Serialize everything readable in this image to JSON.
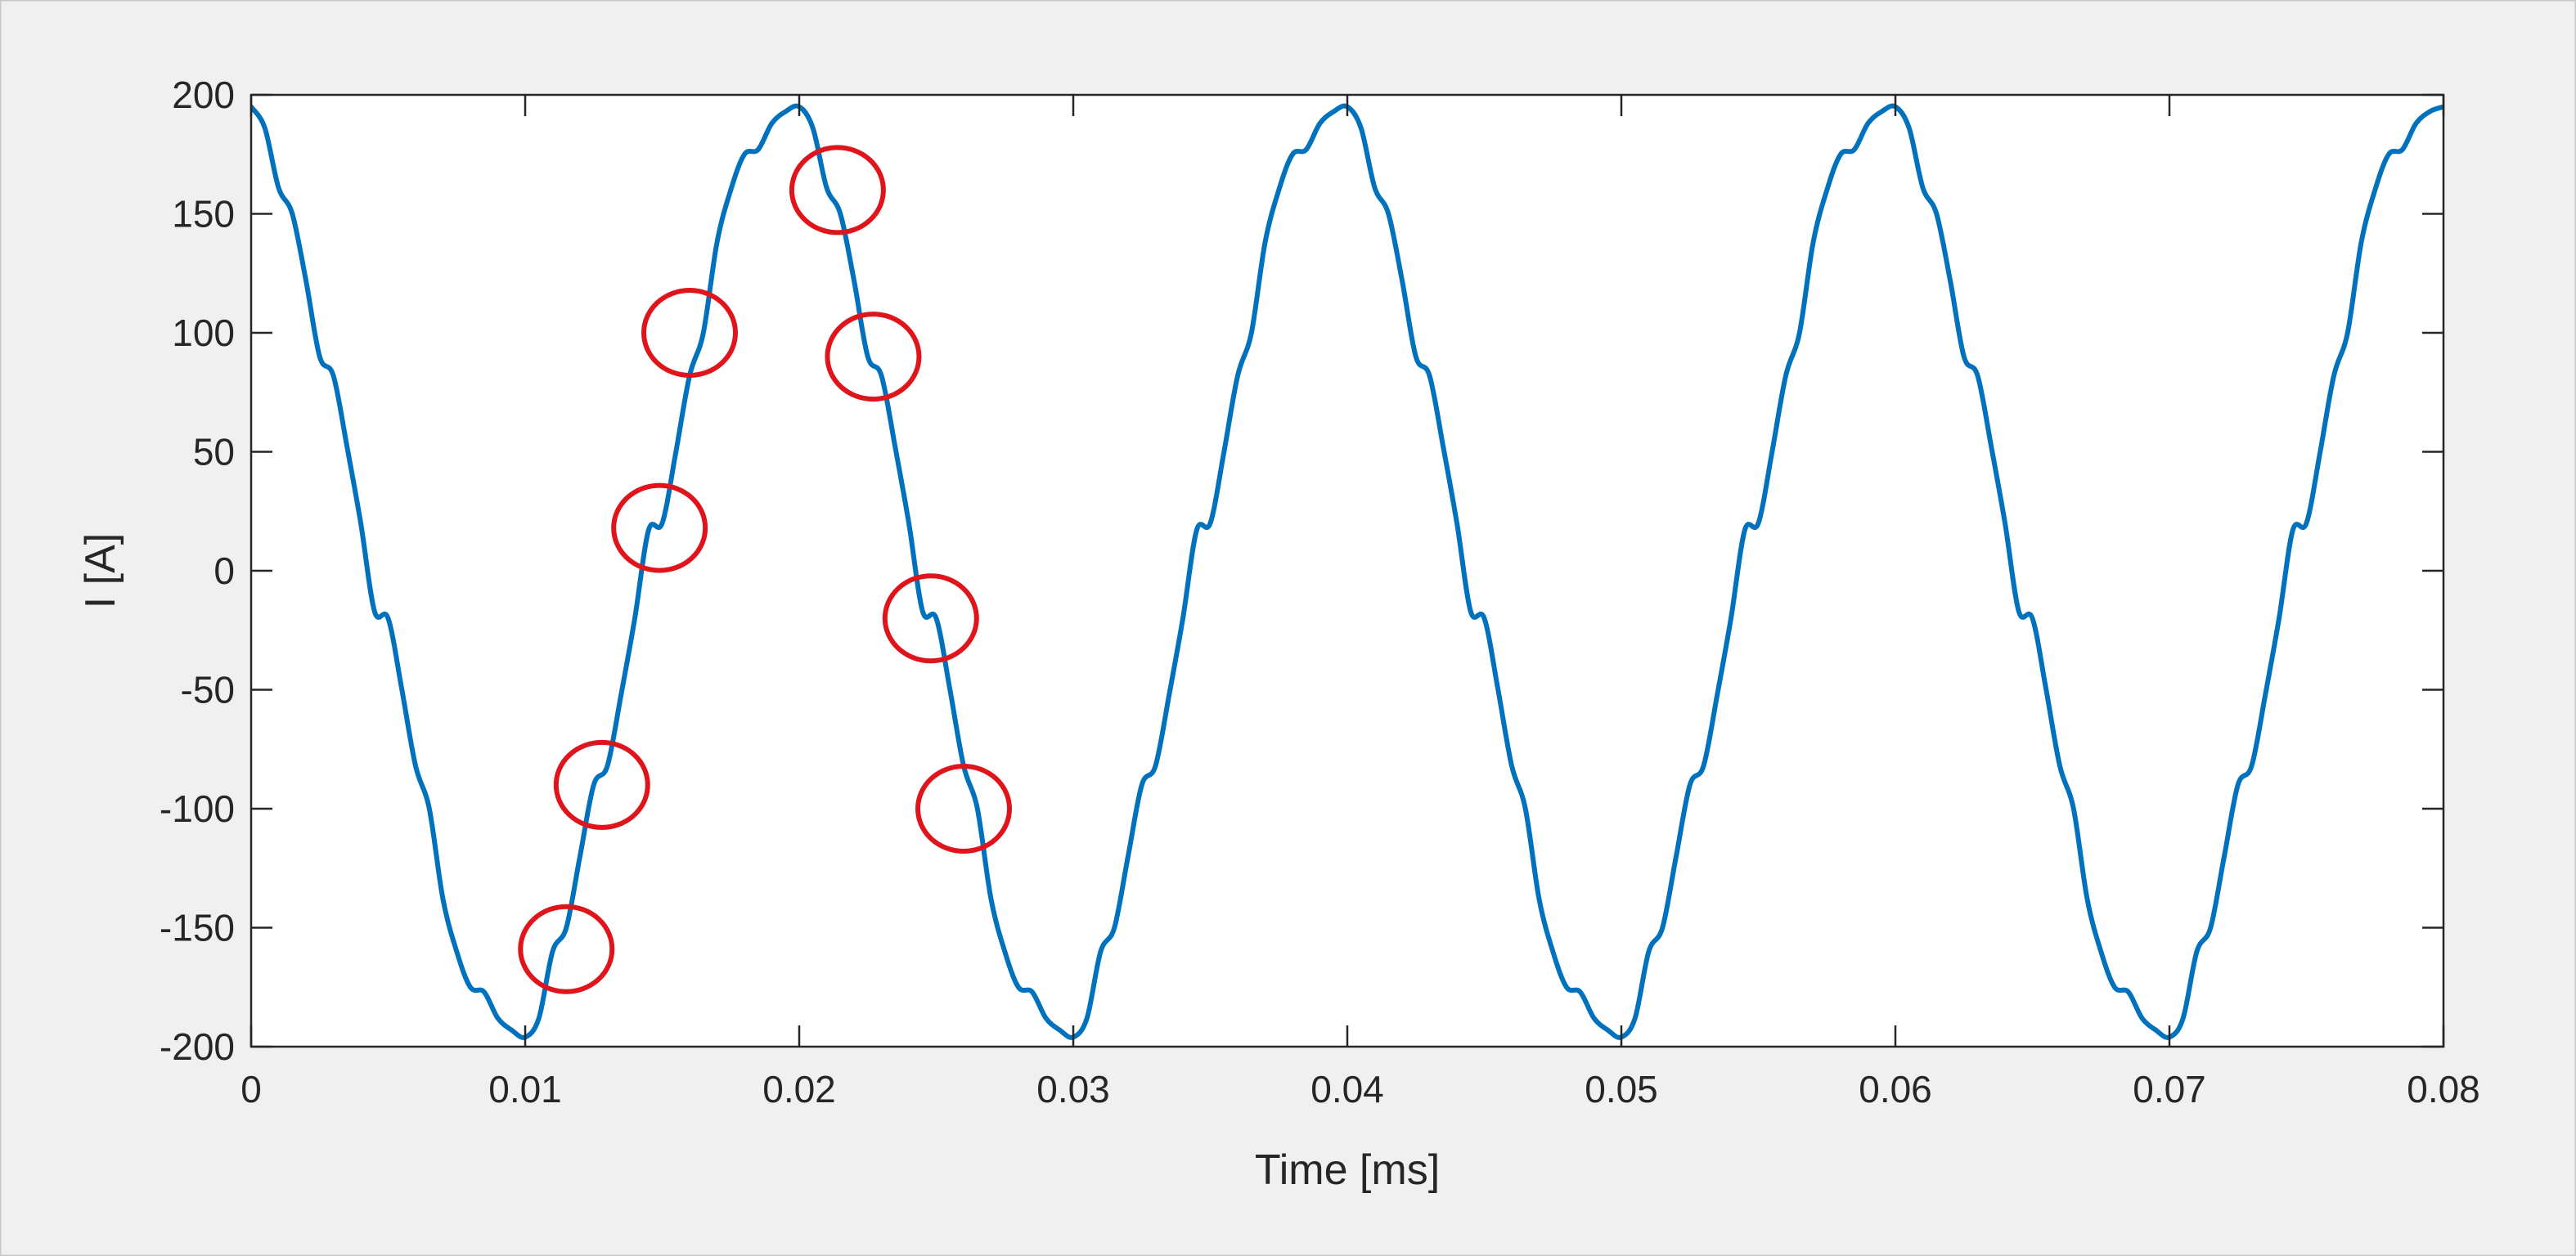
{
  "colors": {
    "figure_bg": "#f0f0f0",
    "axes_bg": "#ffffff",
    "axis": "#262626",
    "line": "#0072bd",
    "marker": "#e0151b"
  },
  "chart_data": {
    "type": "line",
    "title": "",
    "xlabel": "Time [ms]",
    "ylabel": "I [A]",
    "xlim": [
      0,
      0.08
    ],
    "ylim": [
      -200,
      200
    ],
    "grid": false,
    "legend": "none",
    "xticks": [
      0,
      0.01,
      0.02,
      0.03,
      0.04,
      0.05,
      0.06,
      0.07,
      0.08
    ],
    "xtick_labels": [
      "0",
      "0.01",
      "0.02",
      "0.03",
      "0.04",
      "0.05",
      "0.06",
      "0.07",
      "0.08"
    ],
    "yticks": [
      200,
      150,
      100,
      50,
      0,
      -50,
      -100,
      -150,
      -200
    ],
    "ytick_labels": [
      "200",
      "150",
      "100",
      "50",
      "0",
      "-50",
      "-100",
      "-150",
      "-200"
    ],
    "series": [
      {
        "x": [
          0,
          0.0005,
          0.001,
          0.0015,
          0.002,
          0.0025,
          0.003,
          0.0035,
          0.004,
          0.0045,
          0.005,
          0.0055,
          0.006,
          0.0065,
          0.007,
          0.0075,
          0.008,
          0.0085,
          0.009,
          0.0095,
          0.01,
          0.0105,
          0.011,
          0.0115,
          0.012,
          0.0125,
          0.013,
          0.0135,
          0.014,
          0.0145,
          0.015,
          0.0155,
          0.016,
          0.0165,
          0.017,
          0.0175,
          0.018,
          0.0185,
          0.019,
          0.0195,
          0.02
        ],
        "y": [
          195,
          186,
          161,
          150,
          122,
          90,
          82,
          52,
          20,
          -17,
          -20,
          -50,
          -82,
          -100,
          -138,
          -160,
          -175,
          -177,
          -188,
          -193,
          -196,
          -188,
          -160,
          -150,
          -120,
          -90,
          -82,
          -52,
          -20,
          17,
          20,
          50,
          82,
          100,
          138,
          160,
          175,
          177,
          188,
          193,
          196
        ],
        "periodic": true,
        "period": 0.02
      }
    ],
    "annotations": [
      {
        "type": "circle",
        "x": 0.0115,
        "y": -159
      },
      {
        "type": "circle",
        "x": 0.0128,
        "y": -90
      },
      {
        "type": "circle",
        "x": 0.0149,
        "y": 18
      },
      {
        "type": "circle",
        "x": 0.016,
        "y": 100
      },
      {
        "type": "circle",
        "x": 0.0214,
        "y": 160
      },
      {
        "type": "circle",
        "x": 0.0227,
        "y": 90
      },
      {
        "type": "circle",
        "x": 0.0248,
        "y": -20
      },
      {
        "type": "circle",
        "x": 0.026,
        "y": -100
      }
    ]
  }
}
